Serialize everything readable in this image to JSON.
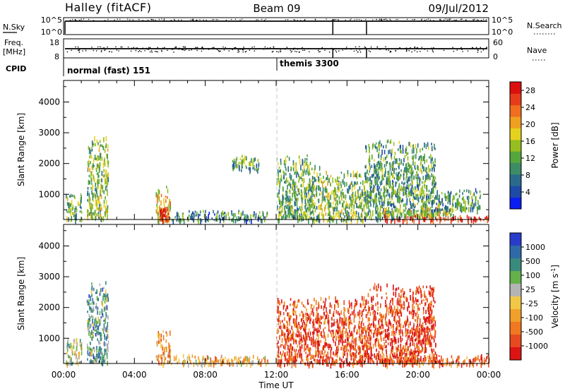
{
  "header": {
    "station": "Halley (fitACF)",
    "beam": "Beam 09",
    "date": "09/Jul/2012"
  },
  "top_panels": {
    "nsky_label": "N.Sky",
    "nsky_ticks": [
      "10^5",
      "10^0"
    ],
    "nsearch_label": "N.Search",
    "nsearch_ticks": [
      "10^5",
      "10^0"
    ],
    "freq_label": "Freq.",
    "freq_unit": "[MHz]",
    "freq_ticks": [
      "18",
      "8"
    ],
    "nave_label": "Nave",
    "nave_ticks": [
      "60",
      "0"
    ],
    "cpid_label": "CPID",
    "cpid_segments": [
      {
        "name": "normal (fast) 151",
        "start_hour": 0
      },
      {
        "name": "themis 3300",
        "start_hour": 12
      }
    ],
    "vertical_marker_hours": [
      15.2,
      17.1
    ]
  },
  "chart_data": [
    {
      "type": "heatmap",
      "panel": "power",
      "ylabel": "Slant Range [km]",
      "xlabel": "",
      "x_range_hours": [
        0,
        24
      ],
      "ylim": [
        180,
        4700
      ],
      "yticks": [
        "1000",
        "2000",
        "3000",
        "4000"
      ],
      "colorbar": {
        "label": "Power [dB]",
        "ticks": [
          "4",
          "8",
          "12",
          "16",
          "20",
          "24",
          "28"
        ],
        "range": [
          0,
          30
        ],
        "colors": [
          "#0a1ef0",
          "#1e4aa8",
          "#2a6a8c",
          "#3c8c66",
          "#55a63c",
          "#96be1e",
          "#e6d21e",
          "#f0a01e",
          "#f06e1e",
          "#e63c19",
          "#dc0f0f"
        ]
      },
      "echo_regions": [
        {
          "t": [
            0.1,
            1.0
          ],
          "r": [
            180,
            1050
          ],
          "level": 0.4
        },
        {
          "t": [
            1.3,
            2.5
          ],
          "r": [
            250,
            2900
          ],
          "level": 0.45
        },
        {
          "t": [
            5.2,
            6.0
          ],
          "r": [
            180,
            1300
          ],
          "level": 0.6
        },
        {
          "t": [
            5.4,
            5.9
          ],
          "r": [
            180,
            600
          ],
          "level": 0.95
        },
        {
          "t": [
            6.0,
            11.5
          ],
          "r": [
            180,
            500
          ],
          "level": 0.3
        },
        {
          "t": [
            9.5,
            11.0
          ],
          "r": [
            1800,
            2300
          ],
          "level": 0.35
        },
        {
          "t": [
            12.0,
            14.5
          ],
          "r": [
            180,
            2300
          ],
          "level": 0.4
        },
        {
          "t": [
            14.5,
            17.0
          ],
          "r": [
            180,
            1800
          ],
          "level": 0.45
        },
        {
          "t": [
            17.0,
            21.0
          ],
          "r": [
            250,
            2800
          ],
          "level": 0.35
        },
        {
          "t": [
            18.0,
            24.0
          ],
          "r": [
            180,
            350
          ],
          "level": 0.95
        },
        {
          "t": [
            18.0,
            22.0
          ],
          "r": [
            350,
            600
          ],
          "level": 0.55
        },
        {
          "t": [
            21.0,
            23.5
          ],
          "r": [
            500,
            1200
          ],
          "level": 0.35
        }
      ]
    },
    {
      "type": "heatmap",
      "panel": "velocity",
      "ylabel": "Slant Range [km]",
      "xlabel": "Time UT",
      "x_range_hours": [
        0,
        24
      ],
      "xticks": [
        "00:00",
        "04:00",
        "08:00",
        "12:00",
        "16:00",
        "20:00",
        "00:00"
      ],
      "ylim": [
        180,
        4700
      ],
      "yticks": [
        "1000",
        "2000",
        "3000",
        "4000"
      ],
      "colorbar": {
        "label": "Velocity [m s^-1]",
        "ticks": [
          "1000",
          "500",
          "100",
          "25",
          "-25",
          "-100",
          "-500",
          "-1000"
        ],
        "colors": [
          "#283ccc",
          "#2e6aa8",
          "#3a8a7e",
          "#64b04a",
          "#b4b4b4",
          "#f0c846",
          "#f0a028",
          "#f07820",
          "#e64a1e",
          "#dc1414"
        ]
      },
      "echo_regions": [
        {
          "t": [
            0.1,
            1.0
          ],
          "r": [
            180,
            1050
          ],
          "level": 0.6
        },
        {
          "t": [
            1.3,
            2.5
          ],
          "r": [
            250,
            2900
          ],
          "level": 0.7
        },
        {
          "t": [
            5.2,
            6.0
          ],
          "r": [
            180,
            1300
          ],
          "level": 0.35
        },
        {
          "t": [
            6.0,
            11.5
          ],
          "r": [
            180,
            500
          ],
          "level": 0.4
        },
        {
          "t": [
            12.0,
            17.0
          ],
          "r": [
            180,
            2400
          ],
          "level": 0.15
        },
        {
          "t": [
            17.0,
            21.0
          ],
          "r": [
            250,
            2800
          ],
          "level": 0.12
        },
        {
          "t": [
            18.0,
            24.0
          ],
          "r": [
            180,
            500
          ],
          "level": 0.2
        }
      ]
    }
  ]
}
